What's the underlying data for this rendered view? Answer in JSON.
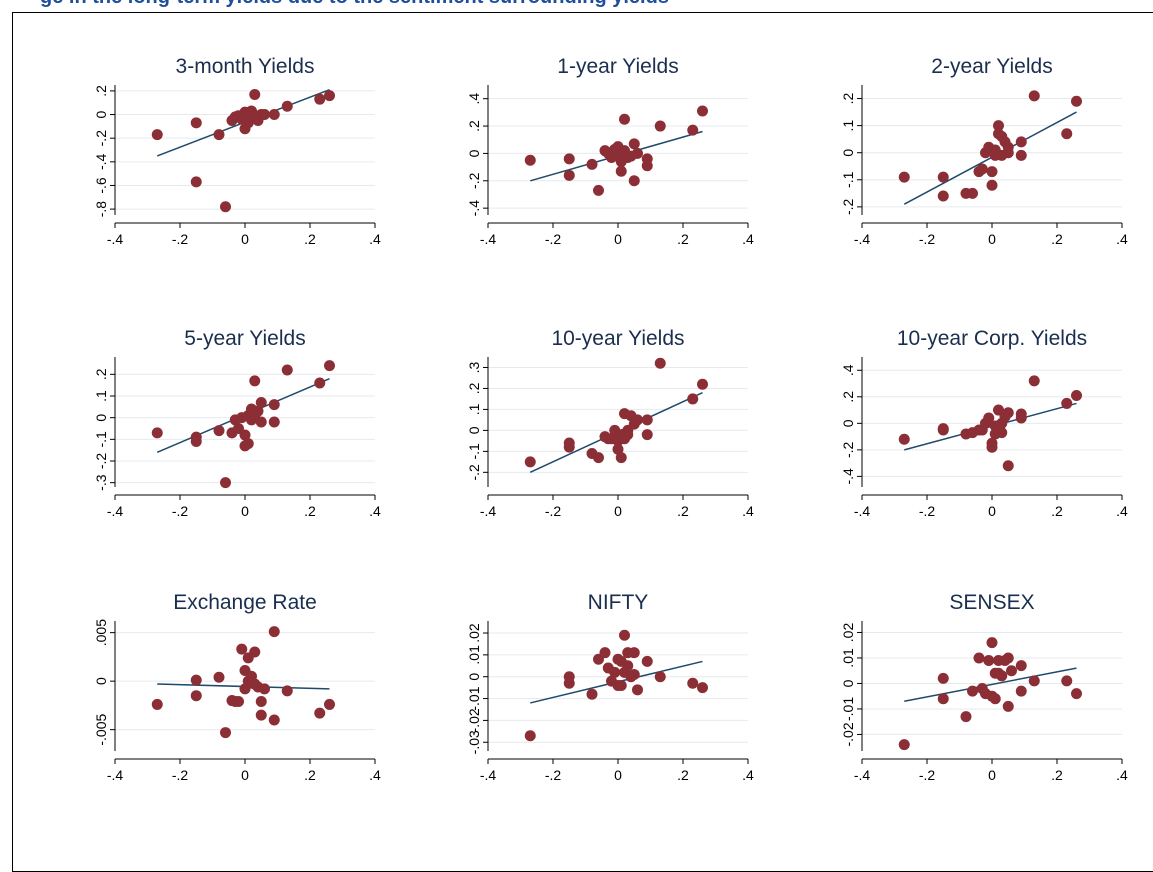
{
  "caption_fragment": "ge in the long-term yields due to the sentiment surrounding yields",
  "colors": {
    "marker": "#8b2e35",
    "fit_line": "#1f4a6b",
    "title": "#1a2f4f",
    "grid": "#e6eaee"
  },
  "chart_data": [
    {
      "type": "scatter",
      "title": "3-month Yields",
      "xlim": [
        -0.4,
        0.4
      ],
      "ylim": [
        -0.85,
        0.25
      ],
      "xticks": [
        -0.4,
        -0.2,
        0,
        0.2,
        0.4
      ],
      "xtick_labels": [
        "-.4",
        "-.2",
        "0",
        ".2",
        ".4"
      ],
      "yticks": [
        -0.8,
        -0.6,
        -0.4,
        -0.2,
        0,
        0.2
      ],
      "ytick_labels": [
        "-.8",
        "-.6",
        "-.4",
        "-.2",
        "0",
        ".2"
      ],
      "points": [
        [
          -0.27,
          -0.17
        ],
        [
          -0.15,
          -0.07
        ],
        [
          -0.15,
          -0.57
        ],
        [
          -0.08,
          -0.17
        ],
        [
          -0.06,
          -0.78
        ],
        [
          -0.04,
          -0.05
        ],
        [
          -0.03,
          -0.02
        ],
        [
          -0.02,
          -0.01
        ],
        [
          -0.01,
          -0.04
        ],
        [
          0.0,
          0.02
        ],
        [
          0.0,
          -0.12
        ],
        [
          0.01,
          -0.07
        ],
        [
          0.01,
          0.0
        ],
        [
          0.02,
          -0.02
        ],
        [
          0.02,
          0.03
        ],
        [
          0.03,
          -0.01
        ],
        [
          0.03,
          0.17
        ],
        [
          0.04,
          -0.05
        ],
        [
          0.05,
          0.0
        ],
        [
          0.06,
          0.0
        ],
        [
          0.09,
          0.0
        ],
        [
          0.13,
          0.07
        ],
        [
          0.23,
          0.13
        ],
        [
          0.26,
          0.16
        ]
      ],
      "fit": [
        [
          -0.27,
          -0.35
        ],
        [
          0.26,
          0.21
        ]
      ]
    },
    {
      "type": "scatter",
      "title": "1-year Yields",
      "xlim": [
        -0.4,
        0.4
      ],
      "ylim": [
        -0.45,
        0.5
      ],
      "xticks": [
        -0.4,
        -0.2,
        0,
        0.2,
        0.4
      ],
      "xtick_labels": [
        "-.4",
        "-.2",
        "0",
        ".2",
        ".4"
      ],
      "yticks": [
        -0.4,
        -0.2,
        0,
        0.2,
        0.4
      ],
      "ytick_labels": [
        "-.4",
        "-.2",
        "0",
        ".2",
        ".4"
      ],
      "points": [
        [
          -0.27,
          -0.05
        ],
        [
          -0.15,
          -0.04
        ],
        [
          -0.15,
          -0.16
        ],
        [
          -0.08,
          -0.08
        ],
        [
          -0.06,
          -0.27
        ],
        [
          -0.04,
          0.02
        ],
        [
          -0.03,
          0.0
        ],
        [
          -0.02,
          -0.03
        ],
        [
          -0.01,
          0.03
        ],
        [
          0.0,
          -0.02
        ],
        [
          0.0,
          0.05
        ],
        [
          0.01,
          -0.06
        ],
        [
          0.01,
          -0.13
        ],
        [
          0.02,
          0.25
        ],
        [
          0.02,
          0.02
        ],
        [
          0.03,
          -0.03
        ],
        [
          0.04,
          -0.02
        ],
        [
          0.05,
          0.07
        ],
        [
          0.05,
          -0.2
        ],
        [
          0.06,
          0.0
        ],
        [
          0.09,
          -0.04
        ],
        [
          0.09,
          -0.09
        ],
        [
          0.13,
          0.2
        ],
        [
          0.23,
          0.17
        ],
        [
          0.26,
          0.31
        ]
      ],
      "fit": [
        [
          -0.27,
          -0.2
        ],
        [
          0.26,
          0.16
        ]
      ]
    },
    {
      "type": "scatter",
      "title": "2-year Yields",
      "xlim": [
        -0.4,
        0.4
      ],
      "ylim": [
        -0.23,
        0.25
      ],
      "xticks": [
        -0.4,
        -0.2,
        0,
        0.2,
        0.4
      ],
      "xtick_labels": [
        "-.4",
        "-.2",
        "0",
        ".2",
        ".4"
      ],
      "yticks": [
        -0.2,
        -0.1,
        0,
        0.1,
        0.2
      ],
      "ytick_labels": [
        "-.2",
        "-.1",
        "0",
        ".1",
        ".2"
      ],
      "points": [
        [
          -0.27,
          -0.09
        ],
        [
          -0.15,
          -0.16
        ],
        [
          -0.15,
          -0.09
        ],
        [
          -0.08,
          -0.15
        ],
        [
          -0.06,
          -0.15
        ],
        [
          -0.04,
          -0.07
        ],
        [
          -0.03,
          -0.06
        ],
        [
          -0.02,
          0.0
        ],
        [
          -0.01,
          0.02
        ],
        [
          0.0,
          -0.12
        ],
        [
          0.0,
          -0.07
        ],
        [
          0.01,
          0.01
        ],
        [
          0.01,
          -0.01
        ],
        [
          0.02,
          0.1
        ],
        [
          0.02,
          0.07
        ],
        [
          0.03,
          -0.01
        ],
        [
          0.03,
          0.06
        ],
        [
          0.04,
          0.04
        ],
        [
          0.05,
          0.02
        ],
        [
          0.05,
          0.0
        ],
        [
          0.09,
          0.04
        ],
        [
          0.09,
          -0.01
        ],
        [
          0.13,
          0.21
        ],
        [
          0.23,
          0.07
        ],
        [
          0.26,
          0.19
        ]
      ],
      "fit": [
        [
          -0.27,
          -0.19
        ],
        [
          0.26,
          0.15
        ]
      ]
    },
    {
      "type": "scatter",
      "title": "5-year Yields",
      "xlim": [
        -0.4,
        0.4
      ],
      "ylim": [
        -0.32,
        0.28
      ],
      "xticks": [
        -0.4,
        -0.2,
        0,
        0.2,
        0.4
      ],
      "xtick_labels": [
        "-.4",
        "-.2",
        "0",
        ".2",
        ".4"
      ],
      "yticks": [
        -0.3,
        -0.2,
        -0.1,
        0,
        0.1,
        0.2
      ],
      "ytick_labels": [
        "-.3",
        "-.2",
        "-.1",
        "0",
        ".1",
        ".2"
      ],
      "points": [
        [
          -0.27,
          -0.07
        ],
        [
          -0.15,
          -0.09
        ],
        [
          -0.15,
          -0.11
        ],
        [
          -0.08,
          -0.06
        ],
        [
          -0.06,
          -0.3
        ],
        [
          -0.04,
          -0.07
        ],
        [
          -0.03,
          -0.01
        ],
        [
          -0.02,
          -0.05
        ],
        [
          -0.01,
          0.0
        ],
        [
          0.0,
          -0.08
        ],
        [
          0.0,
          -0.13
        ],
        [
          0.01,
          -0.12
        ],
        [
          0.01,
          0.01
        ],
        [
          0.02,
          -0.01
        ],
        [
          0.02,
          0.04
        ],
        [
          0.03,
          0.0
        ],
        [
          0.03,
          0.17
        ],
        [
          0.04,
          0.03
        ],
        [
          0.05,
          0.07
        ],
        [
          0.05,
          -0.02
        ],
        [
          0.09,
          0.06
        ],
        [
          0.09,
          -0.02
        ],
        [
          0.13,
          0.22
        ],
        [
          0.23,
          0.16
        ],
        [
          0.26,
          0.24
        ]
      ],
      "fit": [
        [
          -0.27,
          -0.16
        ],
        [
          0.26,
          0.18
        ]
      ]
    },
    {
      "type": "scatter",
      "title": "10-year Yields",
      "xlim": [
        -0.4,
        0.4
      ],
      "ylim": [
        -0.27,
        0.35
      ],
      "xticks": [
        -0.4,
        -0.2,
        0,
        0.2,
        0.4
      ],
      "xtick_labels": [
        "-.4",
        "-.2",
        "0",
        ".2",
        ".4"
      ],
      "yticks": [
        -0.2,
        -0.1,
        0,
        0.1,
        0.2,
        0.3
      ],
      "ytick_labels": [
        "-.2",
        "-.1",
        "0",
        ".1",
        ".2",
        ".3"
      ],
      "points": [
        [
          -0.27,
          -0.15
        ],
        [
          -0.15,
          -0.06
        ],
        [
          -0.15,
          -0.08
        ],
        [
          -0.08,
          -0.11
        ],
        [
          -0.06,
          -0.13
        ],
        [
          -0.04,
          -0.03
        ],
        [
          -0.03,
          -0.04
        ],
        [
          -0.02,
          -0.04
        ],
        [
          -0.01,
          0.0
        ],
        [
          0.0,
          -0.09
        ],
        [
          0.0,
          -0.05
        ],
        [
          0.01,
          -0.13
        ],
        [
          0.01,
          -0.02
        ],
        [
          0.02,
          0.08
        ],
        [
          0.02,
          -0.04
        ],
        [
          0.03,
          0.0
        ],
        [
          0.03,
          -0.02
        ],
        [
          0.04,
          0.07
        ],
        [
          0.05,
          0.03
        ],
        [
          0.06,
          0.05
        ],
        [
          0.09,
          0.05
        ],
        [
          0.09,
          -0.02
        ],
        [
          0.13,
          0.32
        ],
        [
          0.23,
          0.15
        ],
        [
          0.26,
          0.22
        ]
      ],
      "fit": [
        [
          -0.27,
          -0.2
        ],
        [
          0.26,
          0.18
        ]
      ]
    },
    {
      "type": "scatter",
      "title": "10-year Corp. Yields",
      "xlim": [
        -0.4,
        0.4
      ],
      "ylim": [
        -0.48,
        0.5
      ],
      "xticks": [
        -0.4,
        -0.2,
        0,
        0.2,
        0.4
      ],
      "xtick_labels": [
        "-.4",
        "-.2",
        "0",
        ".2",
        ".4"
      ],
      "yticks": [
        -0.4,
        -0.2,
        0,
        0.2,
        0.4
      ],
      "ytick_labels": [
        "-.4",
        "-.2",
        "0",
        ".2",
        ".4"
      ],
      "points": [
        [
          -0.27,
          -0.12
        ],
        [
          -0.15,
          -0.04
        ],
        [
          -0.15,
          -0.05
        ],
        [
          -0.08,
          -0.08
        ],
        [
          -0.06,
          -0.07
        ],
        [
          -0.04,
          -0.05
        ],
        [
          -0.03,
          -0.05
        ],
        [
          -0.02,
          0.0
        ],
        [
          -0.01,
          0.04
        ],
        [
          0.0,
          -0.15
        ],
        [
          0.0,
          -0.18
        ],
        [
          0.01,
          -0.02
        ],
        [
          0.01,
          -0.08
        ],
        [
          0.02,
          0.1
        ],
        [
          0.02,
          -0.02
        ],
        [
          0.03,
          -0.07
        ],
        [
          0.03,
          0.0
        ],
        [
          0.04,
          0.05
        ],
        [
          0.05,
          -0.32
        ],
        [
          0.05,
          0.08
        ],
        [
          0.09,
          0.07
        ],
        [
          0.09,
          0.04
        ],
        [
          0.13,
          0.32
        ],
        [
          0.23,
          0.15
        ],
        [
          0.26,
          0.21
        ]
      ],
      "fit": [
        [
          -0.27,
          -0.2
        ],
        [
          0.26,
          0.15
        ]
      ]
    },
    {
      "type": "scatter",
      "title": "Exchange Rate",
      "xlim": [
        -0.4,
        0.4
      ],
      "ylim": [
        -0.0072,
        0.0062
      ],
      "xticks": [
        -0.4,
        -0.2,
        0,
        0.2,
        0.4
      ],
      "xtick_labels": [
        "-.4",
        "-.2",
        "0",
        ".2",
        ".4"
      ],
      "yticks": [
        -0.005,
        0,
        0.005
      ],
      "ytick_labels": [
        "-.005",
        "0",
        ".005"
      ],
      "points": [
        [
          -0.27,
          -0.0024
        ],
        [
          -0.15,
          -0.0015
        ],
        [
          -0.15,
          0.0001
        ],
        [
          -0.08,
          0.0004
        ],
        [
          -0.06,
          -0.0053
        ],
        [
          -0.04,
          -0.002
        ],
        [
          -0.03,
          -0.0021
        ],
        [
          -0.02,
          -0.0021
        ],
        [
          -0.01,
          0.0033
        ],
        [
          0.0,
          -0.0008
        ],
        [
          0.0,
          0.0011
        ],
        [
          0.01,
          0.0024
        ],
        [
          0.01,
          0.0
        ],
        [
          0.02,
          -0.0002
        ],
        [
          0.02,
          0.0005
        ],
        [
          0.03,
          -0.0003
        ],
        [
          0.03,
          0.003
        ],
        [
          0.04,
          -0.0006
        ],
        [
          0.05,
          -0.0035
        ],
        [
          0.05,
          -0.0021
        ],
        [
          0.06,
          -0.0008
        ],
        [
          0.09,
          0.0051
        ],
        [
          0.09,
          -0.004
        ],
        [
          0.13,
          -0.001
        ],
        [
          0.23,
          -0.0033
        ],
        [
          0.26,
          -0.0024
        ]
      ],
      "fit": [
        [
          -0.27,
          -0.0003
        ],
        [
          0.26,
          -0.0008
        ]
      ]
    },
    {
      "type": "scatter",
      "title": "NIFTY",
      "xlim": [
        -0.4,
        0.4
      ],
      "ylim": [
        -0.034,
        0.0255
      ],
      "xticks": [
        -0.4,
        -0.2,
        0,
        0.2,
        0.4
      ],
      "xtick_labels": [
        "-.4",
        "-.2",
        "0",
        ".2",
        ".4"
      ],
      "yticks": [
        -0.03,
        -0.02,
        -0.01,
        0,
        0.01,
        0.02
      ],
      "ytick_labels": [
        "-.03",
        "-.02",
        "-.01",
        "0",
        ".01",
        ".02"
      ],
      "points": [
        [
          -0.27,
          -0.027
        ],
        [
          -0.15,
          -0.003
        ],
        [
          -0.15,
          0.0
        ],
        [
          -0.08,
          -0.008
        ],
        [
          -0.06,
          0.008
        ],
        [
          -0.04,
          0.011
        ],
        [
          -0.03,
          0.004
        ],
        [
          -0.02,
          -0.002
        ],
        [
          -0.01,
          0.002
        ],
        [
          0.0,
          0.008
        ],
        [
          0.0,
          -0.004
        ],
        [
          0.01,
          -0.004
        ],
        [
          0.01,
          0.007
        ],
        [
          0.02,
          0.019
        ],
        [
          0.02,
          0.002
        ],
        [
          0.03,
          0.005
        ],
        [
          0.03,
          0.011
        ],
        [
          0.04,
          0.0
        ],
        [
          0.05,
          0.001
        ],
        [
          0.05,
          0.011
        ],
        [
          0.06,
          -0.006
        ],
        [
          0.09,
          0.007
        ],
        [
          0.13,
          0.0
        ],
        [
          0.23,
          -0.003
        ],
        [
          0.26,
          -0.005
        ]
      ],
      "fit": [
        [
          -0.27,
          -0.012
        ],
        [
          0.26,
          0.007
        ]
      ]
    },
    {
      "type": "scatter",
      "title": "SENSEX",
      "xlim": [
        -0.4,
        0.4
      ],
      "ylim": [
        -0.0265,
        0.0245
      ],
      "xticks": [
        -0.4,
        -0.2,
        0,
        0.2,
        0.4
      ],
      "xtick_labels": [
        "-.4",
        "-.2",
        "0",
        ".2",
        ".4"
      ],
      "yticks": [
        -0.02,
        -0.01,
        0,
        0.01,
        0.02
      ],
      "ytick_labels": [
        "-.02",
        "-.01",
        "0",
        ".01",
        ".02"
      ],
      "points": [
        [
          -0.27,
          -0.024
        ],
        [
          -0.15,
          -0.006
        ],
        [
          -0.15,
          0.002
        ],
        [
          -0.08,
          -0.013
        ],
        [
          -0.06,
          -0.003
        ],
        [
          -0.04,
          0.01
        ],
        [
          -0.03,
          -0.002
        ],
        [
          -0.02,
          -0.004
        ],
        [
          -0.01,
          0.009
        ],
        [
          0.0,
          -0.005
        ],
        [
          0.0,
          0.016
        ],
        [
          0.01,
          -0.006
        ],
        [
          0.01,
          0.004
        ],
        [
          0.02,
          0.004
        ],
        [
          0.02,
          0.009
        ],
        [
          0.03,
          0.003
        ],
        [
          0.04,
          0.009
        ],
        [
          0.05,
          -0.009
        ],
        [
          0.05,
          0.01
        ],
        [
          0.06,
          0.005
        ],
        [
          0.09,
          0.007
        ],
        [
          0.09,
          -0.003
        ],
        [
          0.13,
          0.001
        ],
        [
          0.23,
          0.001
        ],
        [
          0.26,
          -0.004
        ]
      ],
      "fit": [
        [
          -0.27,
          -0.007
        ],
        [
          0.26,
          0.006
        ]
      ]
    }
  ]
}
